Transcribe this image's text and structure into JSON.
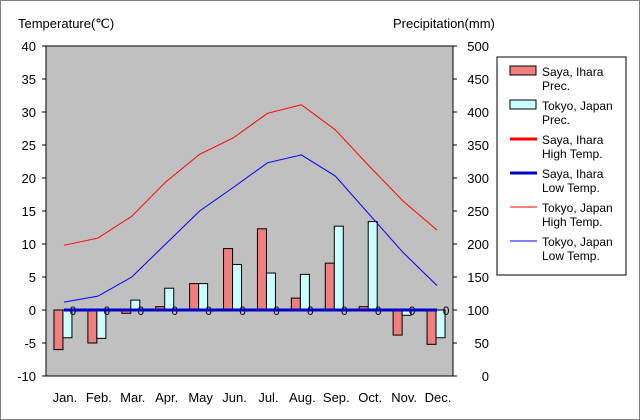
{
  "chart_data": {
    "type": "bar",
    "ylabel": "Temperature(℃)",
    "y2label": "Precipitation(mm)",
    "ylim": [
      -10,
      40
    ],
    "y2lim": [
      0,
      500
    ],
    "yticks": [
      -10,
      -5,
      0,
      5,
      10,
      15,
      20,
      25,
      30,
      35,
      40
    ],
    "y2ticks": [
      0,
      50,
      100,
      150,
      200,
      250,
      300,
      350,
      400,
      450,
      500
    ],
    "categories": [
      "Jan.",
      "Feb.",
      "Mar.",
      "Apr.",
      "May",
      "Jun.",
      "Jul.",
      "Aug.",
      "Sep.",
      "Oct.",
      "Nov.",
      "Dec."
    ],
    "grid": false,
    "legend_position": "right",
    "bar_series": [
      {
        "name": "Saya, Ihara Prec.",
        "label_lines": [
          "Saya, Ihara",
          "Prec."
        ],
        "color": "#f08080",
        "values": [
          -6,
          -5,
          -0.5,
          0.5,
          4,
          9.3,
          12.3,
          1.8,
          7.1,
          0.5,
          -3.8,
          -5.2
        ]
      },
      {
        "name": "Tokyo, Japan Prec.",
        "label_lines": [
          "Tokyo, Japan",
          "Prec."
        ],
        "color": "#ccffff",
        "values": [
          -4.2,
          -4.3,
          1.5,
          3.3,
          4,
          6.9,
          5.6,
          5.4,
          12.7,
          13.4,
          -0.8,
          -4.2
        ]
      }
    ],
    "line_series": [
      {
        "name": "Saya, Ihara High Temp.",
        "label_lines": [
          "Saya, Ihara",
          "High Temp."
        ],
        "color": "#ff0000",
        "width": 3,
        "values": [
          0,
          0,
          0,
          0,
          0,
          0,
          0,
          0,
          0,
          0,
          0,
          0
        ]
      },
      {
        "name": "Saya, Ihara Low Temp.",
        "label_lines": [
          "Saya, Ihara",
          "Low Temp."
        ],
        "color": "#0000cc",
        "width": 3,
        "values": [
          0,
          0,
          0,
          0,
          0,
          0,
          0,
          0,
          0,
          0,
          0,
          0
        ]
      },
      {
        "name": "Tokyo, Japan High Temp.",
        "label_lines": [
          "Tokyo, Japan",
          "High Temp."
        ],
        "color": "#ff0000",
        "width": 1,
        "values": [
          9.8,
          10.9,
          14.2,
          19.4,
          23.6,
          26.1,
          29.8,
          31.1,
          27.3,
          21.8,
          16.5,
          12.1
        ]
      },
      {
        "name": "Tokyo, Japan Low Temp.",
        "label_lines": [
          "Tokyo, Japan",
          "Low Temp."
        ],
        "color": "#0000ff",
        "width": 1,
        "values": [
          1.2,
          2.1,
          5,
          10,
          15,
          18.6,
          22.3,
          23.5,
          20.3,
          14.5,
          8.7,
          3.7
        ]
      }
    ],
    "zero_markers": [
      "0",
      "0",
      "0",
      "0",
      "0",
      "0",
      "0",
      "0",
      "0",
      "0",
      "0",
      "0"
    ]
  }
}
